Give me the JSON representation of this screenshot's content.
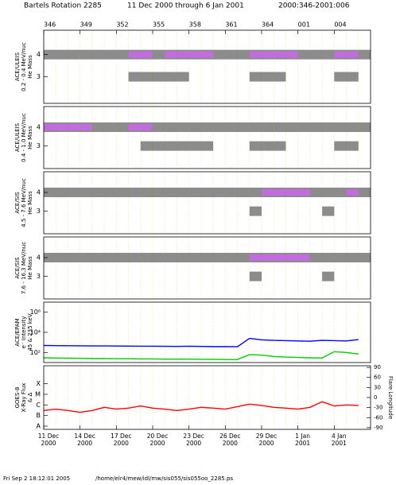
{
  "title": "Bartels Rotation 2285",
  "date_range": "11 Dec 2000 through 6 Jan 2001",
  "doy_range": "2000:346-2001:006",
  "footer_time": "Fri Sep  2 18:12:01 2005",
  "footer_path": "/home/elr4/mew/idl/mw/sis055/sis055oo_2285.ps",
  "chart_data": [
    {
      "type": "scatter",
      "ylabel": [
        "ACE/ULEIS",
        "0.2 - 0.4 MeV/nuc",
        "He Mass"
      ],
      "xlim": [
        346,
        373
      ],
      "ylim": [
        1.8,
        5.1
      ],
      "yticks": [
        3,
        4
      ],
      "top_xticks": [
        346,
        349,
        352,
        355,
        358,
        361,
        364,
        {
          "value": 367,
          "label": "001"
        },
        {
          "value": 370,
          "label": "004"
        }
      ],
      "x": [
        346,
        347,
        348,
        349,
        350,
        351,
        352,
        353,
        354,
        355,
        356,
        357,
        358,
        359,
        360,
        361,
        362,
        363,
        364,
        365,
        366,
        367,
        368,
        369,
        370,
        371,
        372
      ],
      "series": [
        {
          "color": "#000000",
          "values": [
            4,
            4,
            4,
            4,
            4,
            4,
            4,
            4,
            4,
            4,
            4,
            4,
            4,
            4,
            4,
            4,
            4,
            4,
            4,
            4,
            4,
            4,
            4,
            4,
            4,
            4,
            4
          ]
        },
        {
          "color": "#cc66ee",
          "values": [
            null,
            null,
            null,
            null,
            null,
            null,
            null,
            4,
            4,
            null,
            4,
            4,
            4,
            4,
            null,
            null,
            null,
            4,
            4,
            4,
            4,
            null,
            null,
            null,
            4,
            4,
            null
          ]
        },
        {
          "color": "#000000",
          "values": [
            null,
            null,
            null,
            null,
            null,
            null,
            null,
            3,
            3,
            3,
            3,
            3,
            null,
            null,
            null,
            null,
            null,
            3,
            3,
            3,
            null,
            null,
            null,
            null,
            3,
            3,
            null
          ]
        }
      ]
    },
    {
      "type": "scatter",
      "ylabel": [
        "ACE/ULEIS",
        "0.4 - 1.0 MeV/nuc",
        "He Mass"
      ],
      "xlim": [
        346,
        373
      ],
      "ylim": [
        1.8,
        5.1
      ],
      "yticks": [
        3,
        4
      ],
      "x": [
        346,
        347,
        348,
        349,
        350,
        351,
        352,
        353,
        354,
        355,
        356,
        357,
        358,
        359,
        360,
        361,
        362,
        363,
        364,
        365,
        366,
        367,
        368,
        369,
        370,
        371,
        372
      ],
      "series": [
        {
          "color": "#000000",
          "values": [
            4,
            4,
            4,
            4,
            4,
            4,
            4,
            4,
            4,
            4,
            4,
            4,
            4,
            4,
            4,
            4,
            4,
            4,
            4,
            4,
            4,
            4,
            4,
            4,
            4,
            4,
            4
          ]
        },
        {
          "color": "#cc66ee",
          "values": [
            4,
            4,
            4,
            4,
            null,
            null,
            null,
            4,
            4,
            null,
            null,
            null,
            null,
            null,
            null,
            null,
            null,
            null,
            null,
            null,
            null,
            null,
            null,
            null,
            null,
            null,
            null
          ]
        },
        {
          "color": "#000000",
          "values": [
            null,
            null,
            null,
            null,
            null,
            null,
            null,
            null,
            3,
            3,
            3,
            3,
            3,
            3,
            null,
            null,
            null,
            3,
            3,
            3,
            null,
            null,
            null,
            null,
            3,
            3,
            null
          ]
        }
      ]
    },
    {
      "type": "scatter",
      "ylabel": [
        "ACE/SIS",
        "4.5 - 7.6 MeV/nuc",
        "He Mass"
      ],
      "xlim": [
        346,
        373
      ],
      "ylim": [
        1.8,
        5.1
      ],
      "yticks": [
        3,
        4
      ],
      "x": [
        346,
        347,
        348,
        349,
        350,
        351,
        352,
        353,
        354,
        355,
        356,
        357,
        358,
        359,
        360,
        361,
        362,
        363,
        364,
        365,
        366,
        367,
        368,
        369,
        370,
        371,
        372
      ],
      "series": [
        {
          "color": "#000000",
          "values": [
            4,
            4,
            4,
            4,
            4,
            4,
            4,
            4,
            4,
            4,
            4,
            4,
            4,
            4,
            4,
            4,
            4,
            4,
            4,
            4,
            4,
            4,
            4,
            4,
            4,
            4,
            4
          ]
        },
        {
          "color": "#cc66ee",
          "values": [
            null,
            null,
            null,
            null,
            null,
            null,
            null,
            null,
            null,
            null,
            null,
            null,
            null,
            null,
            null,
            null,
            null,
            null,
            4,
            4,
            4,
            4,
            null,
            null,
            null,
            4,
            null
          ]
        },
        {
          "color": "#000000",
          "values": [
            null,
            null,
            null,
            null,
            null,
            null,
            null,
            null,
            null,
            null,
            null,
            null,
            null,
            null,
            null,
            null,
            null,
            3,
            null,
            null,
            null,
            null,
            null,
            3,
            null,
            null,
            null
          ]
        }
      ]
    },
    {
      "type": "scatter",
      "ylabel": [
        "ACE/SIS",
        "7.6 - 16.3 MeV/nuc",
        "He Mass"
      ],
      "xlim": [
        346,
        373
      ],
      "ylim": [
        1.8,
        5.1
      ],
      "yticks": [
        3,
        4
      ],
      "x": [
        346,
        347,
        348,
        349,
        350,
        351,
        352,
        353,
        354,
        355,
        356,
        357,
        358,
        359,
        360,
        361,
        362,
        363,
        364,
        365,
        366,
        367,
        368,
        369,
        370,
        371,
        372
      ],
      "series": [
        {
          "color": "#000000",
          "values": [
            4,
            4,
            4,
            4,
            4,
            4,
            4,
            4,
            4,
            4,
            4,
            4,
            4,
            4,
            4,
            4,
            4,
            4,
            4,
            4,
            4,
            4,
            4,
            4,
            4,
            4,
            4
          ]
        },
        {
          "color": "#cc66ee",
          "values": [
            null,
            null,
            null,
            null,
            null,
            null,
            null,
            null,
            null,
            null,
            null,
            null,
            null,
            null,
            null,
            null,
            null,
            4,
            4,
            4,
            4,
            4,
            null,
            null,
            null,
            null,
            null
          ]
        },
        {
          "color": "#000000",
          "values": [
            null,
            null,
            null,
            null,
            null,
            null,
            null,
            null,
            null,
            null,
            null,
            null,
            null,
            null,
            null,
            null,
            null,
            3,
            null,
            null,
            null,
            null,
            null,
            3,
            null,
            null,
            null
          ]
        }
      ]
    },
    {
      "type": "line",
      "ylabel": [
        "ACE/EPAM",
        "e⁻ Intensity",
        "45 & 235 keV"
      ],
      "xlim": [
        346,
        373
      ],
      "ylim": [
        10,
        10000000
      ],
      "log_y": true,
      "yticks": [
        {
          "value": 100,
          "label": "10²"
        },
        {
          "value": 10000,
          "label": "10⁴"
        },
        {
          "value": 1000000,
          "label": "10⁶"
        }
      ],
      "x": [
        346,
        347,
        348,
        349,
        350,
        351,
        352,
        353,
        354,
        355,
        356,
        357,
        358,
        359,
        360,
        361,
        362,
        363,
        364,
        365,
        366,
        367,
        368,
        369,
        370,
        371,
        372
      ],
      "series": [
        {
          "color": "#0000ff",
          "values": [
            500,
            480,
            470,
            460,
            450,
            450,
            440,
            430,
            420,
            420,
            410,
            400,
            420,
            400,
            380,
            380,
            370,
            2500,
            1800,
            1600,
            1500,
            1400,
            1300,
            1600,
            1500,
            1400,
            1900
          ]
        },
        {
          "color": "#00cc00",
          "values": [
            30,
            28,
            27,
            26,
            25,
            25,
            24,
            24,
            23,
            23,
            22,
            22,
            22,
            21,
            21,
            20,
            20,
            60,
            55,
            40,
            35,
            32,
            30,
            28,
            120,
            100,
            70
          ]
        }
      ]
    },
    {
      "type": "line",
      "ylabel": [
        "GOES-8",
        "X-Ray Flux",
        "& Δ"
      ],
      "y2label": "Flare Longitude",
      "xlim": [
        346,
        373
      ],
      "ylim": [
        5e-09,
        0.005
      ],
      "log_y": true,
      "yticks": [
        {
          "value": 1e-08,
          "label": "A"
        },
        {
          "value": 1e-07,
          "label": "B"
        },
        {
          "value": 1e-06,
          "label": "C"
        },
        {
          "value": 1e-05,
          "label": "M"
        },
        {
          "value": 0.0001,
          "label": "X"
        }
      ],
      "y2lim": [
        -95,
        95
      ],
      "y2ticks": [
        -90,
        -60,
        -30,
        0,
        30,
        60,
        90
      ],
      "xticks": [
        {
          "value": 346,
          "label": "11 Dec 2000"
        },
        {
          "value": 349,
          "label": "14 Dec 2000"
        },
        {
          "value": 352,
          "label": "17 Dec 2000"
        },
        {
          "value": 355,
          "label": "20 Dec 2000"
        },
        {
          "value": 358,
          "label": "23 Dec 2000"
        },
        {
          "value": 361,
          "label": "26 Dec 2000"
        },
        {
          "value": 364,
          "label": "29 Dec 2000"
        },
        {
          "value": 367,
          "label": "1 Jan 2001"
        },
        {
          "value": 370,
          "label": "4 Jan 2001"
        }
      ],
      "x": [
        346,
        347,
        348,
        349,
        350,
        351,
        352,
        353,
        354,
        355,
        356,
        357,
        358,
        359,
        360,
        361,
        362,
        363,
        364,
        365,
        366,
        367,
        368,
        369,
        370,
        371,
        372
      ],
      "series": [
        {
          "color": "#ff0000",
          "values": [
            3e-07,
            4e-07,
            3e-07,
            2e-07,
            3e-07,
            6e-07,
            4e-07,
            5e-07,
            8e-07,
            5e-07,
            4e-07,
            3e-07,
            4e-07,
            6e-07,
            5e-07,
            4e-07,
            7e-07,
            1.2e-06,
            9e-07,
            6e-07,
            5e-07,
            4e-07,
            6e-07,
            2e-06,
            8e-07,
            1e-06,
            9e-07
          ]
        }
      ]
    }
  ]
}
